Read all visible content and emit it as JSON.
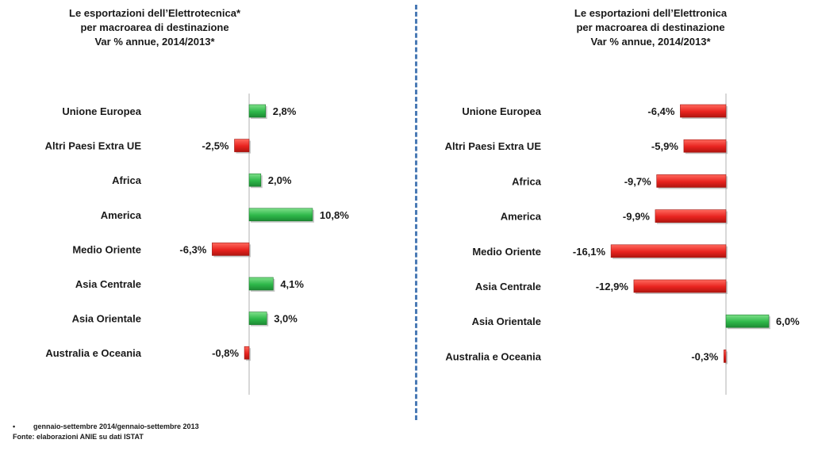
{
  "colors": {
    "positive": "#2eb84a",
    "negative": "#e8231f",
    "divider": "#4a7ab5"
  },
  "chart_data": [
    {
      "type": "bar",
      "orientation": "horizontal",
      "title_lines": [
        "Le esportazioni dell’Elettrotecnica*",
        "per macroarea di destinazione",
        "Var % annue, 2014/2013*"
      ],
      "categories": [
        "Unione Europea",
        "Altri Paesi Extra UE",
        "Africa",
        "America",
        "Medio Oriente",
        "Asia Centrale",
        "Asia Orientale",
        "Australia e Oceania"
      ],
      "values": [
        2.8,
        -2.5,
        2.0,
        10.8,
        -6.3,
        4.1,
        3.0,
        -0.8
      ],
      "value_labels": [
        "2,8%",
        "-2,5%",
        "2,0%",
        "10,8%",
        "-6,3%",
        "4,1%",
        "3,0%",
        "-0,8%"
      ],
      "xlim": [
        -6.3,
        10.8
      ]
    },
    {
      "type": "bar",
      "orientation": "horizontal",
      "title_lines": [
        "Le esportazioni dell’Elettronica",
        "per macroarea di destinazione",
        "Var % annue, 2014/2013*"
      ],
      "categories": [
        "Unione Europea",
        "Altri Paesi Extra UE",
        "Africa",
        "America",
        "Medio Oriente",
        "Asia Centrale",
        "Asia Orientale",
        "Australia e Oceania"
      ],
      "values": [
        -6.4,
        -5.9,
        -9.7,
        -9.9,
        -16.1,
        -12.9,
        6.0,
        -0.3
      ],
      "value_labels": [
        "-6,4%",
        "-5,9%",
        "-9,7%",
        "-9,9%",
        "-16,1%",
        "-12,9%",
        "6,0%",
        "-0,3%"
      ],
      "xlim": [
        -16.1,
        6.0
      ]
    }
  ],
  "footnotes": {
    "bullet": "•",
    "period": "gennaio-settembre 2014/gennaio-settembre 2013",
    "source": "Fonte: elaborazioni ANIE su dati ISTAT"
  }
}
